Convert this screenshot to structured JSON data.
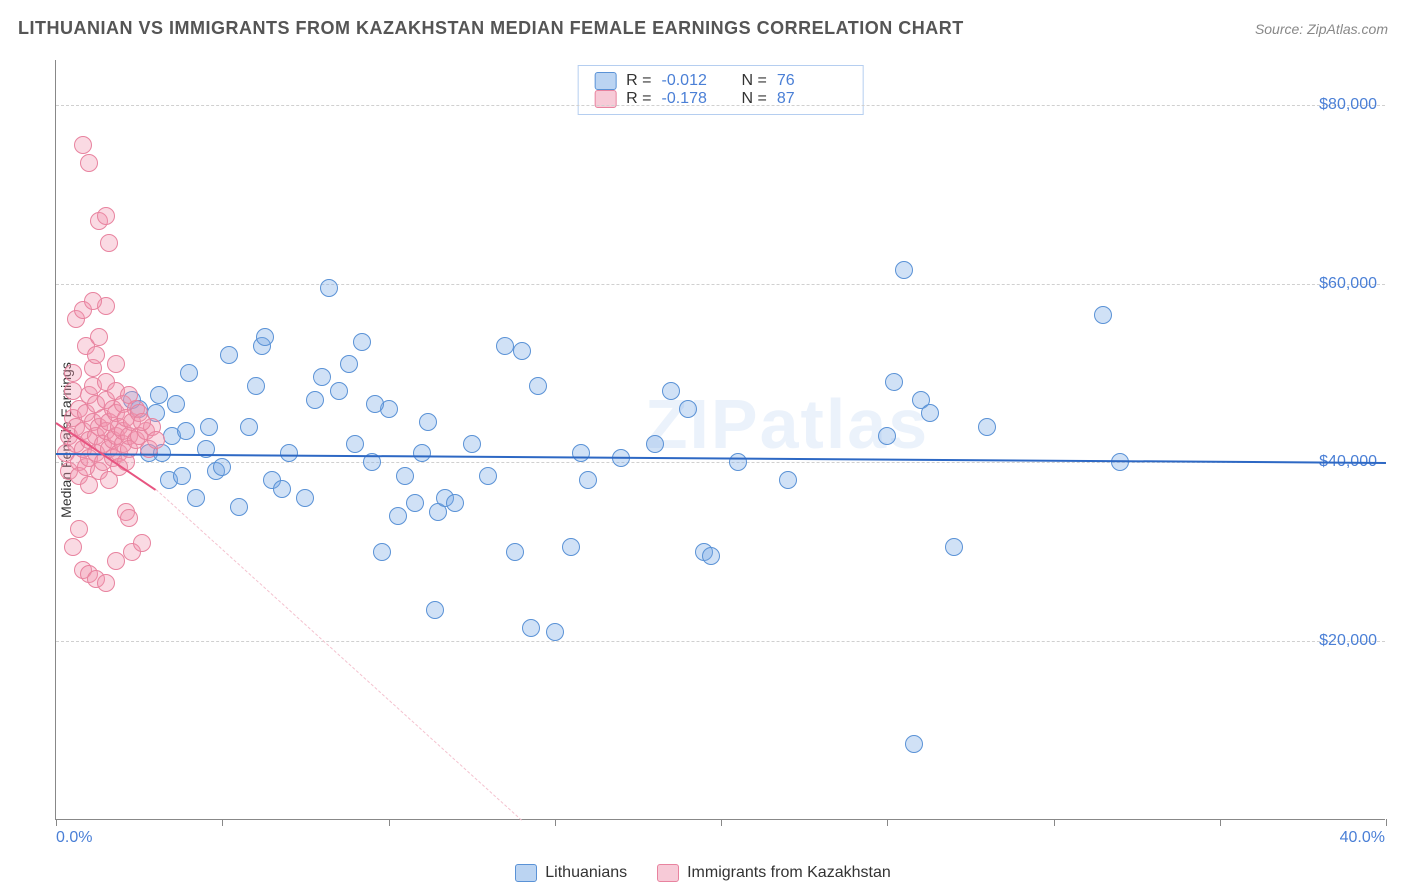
{
  "title": "LITHUANIAN VS IMMIGRANTS FROM KAZAKHSTAN MEDIAN FEMALE EARNINGS CORRELATION CHART",
  "source": "Source: ZipAtlas.com",
  "watermark": "ZIPatlas",
  "chart": {
    "type": "scatter",
    "ylabel": "Median Female Earnings",
    "background_color": "#ffffff",
    "grid_color": "#d0d0d0",
    "axis_color": "#888888",
    "tick_label_color": "#4a7fd6",
    "xlim": [
      0,
      40
    ],
    "ylim": [
      0,
      85000
    ],
    "x_ticks_minor": [
      0,
      5,
      10,
      15,
      20,
      25,
      30,
      35,
      40
    ],
    "x_labels": {
      "min": "0.0%",
      "max": "40.0%"
    },
    "y_ticks": [
      20000,
      40000,
      60000,
      80000
    ],
    "y_labels": [
      "$20,000",
      "$40,000",
      "$60,000",
      "$80,000"
    ],
    "series": [
      {
        "name": "Lithuanians",
        "color_fill": "rgba(120,170,230,0.35)",
        "color_stroke": "#5a92d6",
        "R": "-0.012",
        "N": "76",
        "regression": {
          "y_at_xmin": 41000,
          "y_at_xmax": 40000,
          "color": "#2d68c4"
        },
        "points": [
          [
            2.3,
            47000
          ],
          [
            2.5,
            46000
          ],
          [
            2.8,
            41000
          ],
          [
            3.0,
            45500
          ],
          [
            3.1,
            47500
          ],
          [
            3.2,
            41000
          ],
          [
            3.4,
            38000
          ],
          [
            3.5,
            43000
          ],
          [
            3.6,
            46500
          ],
          [
            3.8,
            38500
          ],
          [
            4.0,
            50000
          ],
          [
            4.2,
            36000
          ],
          [
            4.5,
            41500
          ],
          [
            4.8,
            39000
          ],
          [
            5.2,
            52000
          ],
          [
            5.5,
            35000
          ],
          [
            5.8,
            44000
          ],
          [
            6.0,
            48500
          ],
          [
            6.2,
            53000
          ],
          [
            6.5,
            38000
          ],
          [
            6.8,
            37000
          ],
          [
            7.0,
            41000
          ],
          [
            7.5,
            36000
          ],
          [
            8.0,
            49500
          ],
          [
            8.2,
            59500
          ],
          [
            8.5,
            48000
          ],
          [
            9.0,
            42000
          ],
          [
            9.2,
            53500
          ],
          [
            9.5,
            40000
          ],
          [
            9.8,
            30000
          ],
          [
            10.0,
            46000
          ],
          [
            10.3,
            34000
          ],
          [
            10.5,
            38500
          ],
          [
            10.8,
            35500
          ],
          [
            11.0,
            41000
          ],
          [
            11.2,
            44500
          ],
          [
            11.4,
            23500
          ],
          [
            11.5,
            34500
          ],
          [
            11.7,
            36000
          ],
          [
            12.0,
            35500
          ],
          [
            12.5,
            42000
          ],
          [
            13.0,
            38500
          ],
          [
            13.5,
            53000
          ],
          [
            13.8,
            30000
          ],
          [
            14.0,
            52500
          ],
          [
            14.3,
            21500
          ],
          [
            14.5,
            48500
          ],
          [
            15.0,
            21000
          ],
          [
            15.5,
            30500
          ],
          [
            15.8,
            41000
          ],
          [
            16.0,
            38000
          ],
          [
            17.0,
            40500
          ],
          [
            18.0,
            42000
          ],
          [
            18.5,
            48000
          ],
          [
            19.0,
            46000
          ],
          [
            19.5,
            30000
          ],
          [
            19.7,
            29500
          ],
          [
            20.5,
            40000
          ],
          [
            22.0,
            38000
          ],
          [
            25.0,
            43000
          ],
          [
            25.2,
            49000
          ],
          [
            25.5,
            61500
          ],
          [
            25.8,
            8500
          ],
          [
            26.0,
            47000
          ],
          [
            26.3,
            45500
          ],
          [
            27.0,
            30500
          ],
          [
            28.0,
            44000
          ],
          [
            31.5,
            56500
          ],
          [
            32.0,
            40000
          ],
          [
            3.9,
            43500
          ],
          [
            4.6,
            44000
          ],
          [
            5.0,
            39500
          ],
          [
            6.3,
            54000
          ],
          [
            7.8,
            47000
          ],
          [
            8.8,
            51000
          ],
          [
            9.6,
            46500
          ]
        ]
      },
      {
        "name": "Immigrants from Kazakhstan",
        "color_fill": "rgba(240,150,175,0.35)",
        "color_stroke": "#e8839f",
        "R": "-0.178",
        "N": "87",
        "regression": {
          "y_at_xmin": 44500,
          "y_at_x3": 37000,
          "dash_to_x": 14,
          "dash_y": 0,
          "color": "#e75480"
        },
        "points": [
          [
            0.3,
            41000
          ],
          [
            0.4,
            43000
          ],
          [
            0.4,
            39000
          ],
          [
            0.5,
            48000
          ],
          [
            0.5,
            45000
          ],
          [
            0.5,
            50000
          ],
          [
            0.6,
            42000
          ],
          [
            0.6,
            56000
          ],
          [
            0.6,
            44000
          ],
          [
            0.7,
            40000
          ],
          [
            0.7,
            38500
          ],
          [
            0.7,
            46000
          ],
          [
            0.8,
            57000
          ],
          [
            0.8,
            41500
          ],
          [
            0.8,
            43500
          ],
          [
            0.9,
            39500
          ],
          [
            0.9,
            53000
          ],
          [
            0.9,
            45500
          ],
          [
            1.0,
            47500
          ],
          [
            1.0,
            42500
          ],
          [
            1.0,
            40500
          ],
          [
            1.0,
            37500
          ],
          [
            1.1,
            44500
          ],
          [
            1.1,
            48500
          ],
          [
            1.1,
            50500
          ],
          [
            1.2,
            41000
          ],
          [
            1.2,
            46500
          ],
          [
            1.2,
            43000
          ],
          [
            1.2,
            52000
          ],
          [
            1.3,
            39000
          ],
          [
            1.3,
            44000
          ],
          [
            1.3,
            54000
          ],
          [
            1.4,
            42000
          ],
          [
            1.4,
            45000
          ],
          [
            1.4,
            40000
          ],
          [
            1.5,
            47000
          ],
          [
            1.5,
            43500
          ],
          [
            1.5,
            49000
          ],
          [
            1.5,
            57500
          ],
          [
            1.6,
            41500
          ],
          [
            1.6,
            38000
          ],
          [
            1.6,
            44500
          ],
          [
            1.7,
            46000
          ],
          [
            1.7,
            42500
          ],
          [
            1.7,
            40500
          ],
          [
            1.8,
            45500
          ],
          [
            1.8,
            43000
          ],
          [
            1.8,
            48000
          ],
          [
            1.8,
            51000
          ],
          [
            1.9,
            41000
          ],
          [
            1.9,
            44000
          ],
          [
            1.9,
            39500
          ],
          [
            2.0,
            42000
          ],
          [
            2.0,
            46500
          ],
          [
            2.0,
            43500
          ],
          [
            2.1,
            40000
          ],
          [
            2.1,
            45000
          ],
          [
            2.1,
            34500
          ],
          [
            2.2,
            47500
          ],
          [
            2.2,
            43000
          ],
          [
            2.2,
            41500
          ],
          [
            2.3,
            44500
          ],
          [
            2.3,
            30000
          ],
          [
            2.4,
            42500
          ],
          [
            2.4,
            46000
          ],
          [
            2.5,
            43000
          ],
          [
            2.5,
            45500
          ],
          [
            2.6,
            31000
          ],
          [
            2.7,
            43500
          ],
          [
            2.8,
            41500
          ],
          [
            2.9,
            44000
          ],
          [
            3.0,
            42500
          ],
          [
            0.8,
            75500
          ],
          [
            1.0,
            73500
          ],
          [
            1.3,
            67000
          ],
          [
            1.5,
            67500
          ],
          [
            1.1,
            58000
          ],
          [
            1.6,
            64500
          ],
          [
            0.5,
            30500
          ],
          [
            0.8,
            28000
          ],
          [
            1.0,
            27500
          ],
          [
            1.2,
            27000
          ],
          [
            1.5,
            26500
          ],
          [
            1.8,
            29000
          ],
          [
            2.2,
            33800
          ],
          [
            0.7,
            32500
          ],
          [
            2.6,
            44500
          ]
        ]
      }
    ]
  },
  "legend": {
    "series1_label": "Lithuanians",
    "series2_label": "Immigrants from Kazakhstan"
  }
}
